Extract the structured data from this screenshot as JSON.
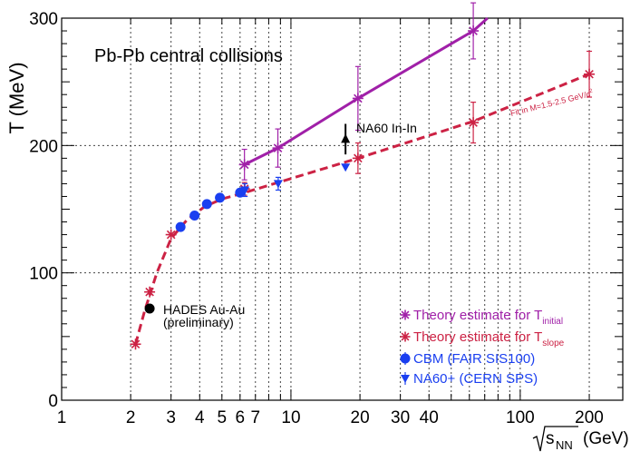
{
  "chart_data": {
    "type": "scatter",
    "title": "Pb-Pb central collisions",
    "xlabel_root": "s",
    "xlabel_sub": "NN",
    "xlabel_unit": "(GeV)",
    "ylabel": "T (MeV)",
    "xscale": "log",
    "xlim": [
      1,
      280
    ],
    "ylim": [
      0,
      300
    ],
    "grid": true,
    "x_ticks": [
      1,
      2,
      3,
      4,
      5,
      6,
      7,
      10,
      20,
      30,
      40,
      100,
      200
    ],
    "x_tick_labels": [
      "1",
      "2",
      "3",
      "4",
      "5",
      "6",
      "7",
      "10",
      "20",
      "30",
      "40",
      "100",
      "200"
    ],
    "y_ticks": [
      0,
      100,
      200,
      300
    ],
    "y_tick_labels": [
      "0",
      "100",
      "200",
      "300"
    ],
    "series": [
      {
        "name": "Theory estimate for T_initial",
        "legend_main": "Theory estimate for T",
        "legend_sub": "initial",
        "color": "#a020a8",
        "marker": "star",
        "points": [
          {
            "x": 6.27,
            "y": 185,
            "err": 12
          },
          {
            "x": 8.77,
            "y": 198,
            "err": 15
          },
          {
            "x": 19.6,
            "y": 237,
            "err": 25
          },
          {
            "x": 62.4,
            "y": 290,
            "err": 22
          }
        ]
      },
      {
        "name": "Theory estimate for T_slope",
        "legend_main": "Theory estimate for T",
        "legend_sub": "slope",
        "color": "#cc2244",
        "marker": "star",
        "points": [
          {
            "x": 2.1,
            "y": 44,
            "err": 0
          },
          {
            "x": 2.42,
            "y": 85,
            "err": 0
          },
          {
            "x": 3.0,
            "y": 130,
            "err": 0
          },
          {
            "x": 6.27,
            "y": 166,
            "err": 5
          },
          {
            "x": 19.6,
            "y": 190,
            "err": 12
          },
          {
            "x": 62.4,
            "y": 218,
            "err": 16
          },
          {
            "x": 200,
            "y": 256,
            "err": 18
          }
        ]
      },
      {
        "name": "CBM (FAIR SIS100)",
        "legend_main": "CBM (FAIR SIS100)",
        "color": "#1a3ff0",
        "marker": "circle",
        "points": [
          {
            "x": 3.3,
            "y": 136
          },
          {
            "x": 3.8,
            "y": 145
          },
          {
            "x": 4.3,
            "y": 154
          },
          {
            "x": 4.9,
            "y": 159
          },
          {
            "x": 6.0,
            "y": 163
          }
        ]
      },
      {
        "name": "NA60+ (CERN SPS)",
        "legend_main": "NA60+ (CERN SPS)",
        "color": "#1a3ff0",
        "marker": "triangle-down",
        "points": [
          {
            "x": 6.3,
            "y": 165,
            "err": 5
          },
          {
            "x": 8.8,
            "y": 170,
            "err": 5
          },
          {
            "x": 17.3,
            "y": 183,
            "err": 0
          }
        ]
      },
      {
        "name": "HADES Au-Au",
        "color": "#000000",
        "marker": "circle",
        "points": [
          {
            "x": 2.42,
            "y": 72
          }
        ]
      }
    ],
    "fit_lines": [
      {
        "name": "initial-fit",
        "color": "#a020a8",
        "style": "solid",
        "points": [
          [
            6.27,
            185
          ],
          [
            8.77,
            198
          ],
          [
            19.6,
            237
          ],
          [
            62.4,
            290
          ],
          [
            72,
            300
          ]
        ]
      },
      {
        "name": "slope-fit",
        "color": "#cc2244",
        "style": "dashed",
        "points": [
          [
            2.1,
            44
          ],
          [
            2.3,
            70
          ],
          [
            2.6,
            100
          ],
          [
            3.0,
            127
          ],
          [
            3.5,
            141
          ],
          [
            4.2,
            152
          ],
          [
            5.0,
            158
          ],
          [
            6.27,
            163
          ],
          [
            10,
            174
          ],
          [
            19.6,
            190
          ],
          [
            62.4,
            219
          ],
          [
            200,
            256
          ]
        ]
      }
    ],
    "annotations": {
      "hades_label": "HADES Au-Au",
      "hades_sub": "(preliminary)",
      "na60_label": "NA60 In-In",
      "na60_point": {
        "x": 17.3,
        "y": 205
      },
      "fit_label": "Fit in M=1.5-2.5 GeV/c",
      "fit_label_sup": "2"
    }
  }
}
